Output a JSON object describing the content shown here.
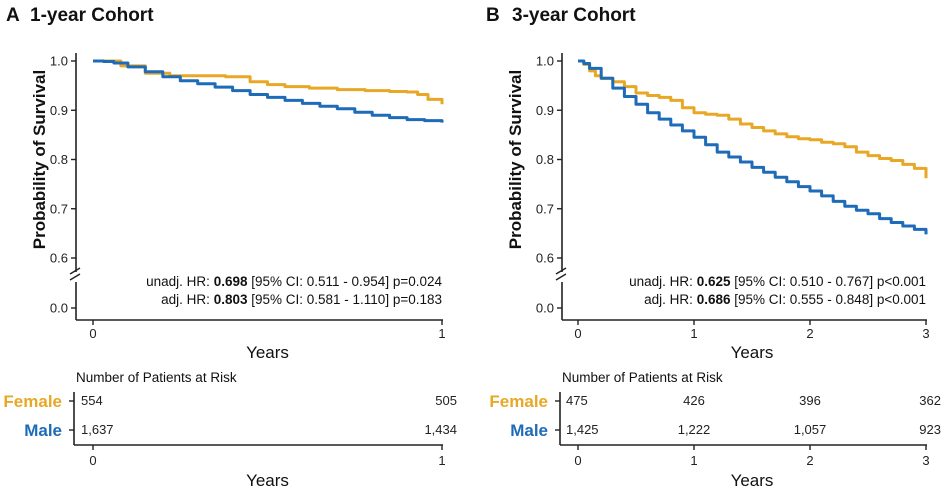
{
  "chart_data": [
    {
      "type": "line",
      "panel_letter": "A",
      "title": "1-year Cohort",
      "xlabel": "Years",
      "ylabel": "Probability of Survival",
      "xlim": [
        0,
        1
      ],
      "ylim": [
        0.55,
        1.0
      ],
      "x_ticks": [
        0,
        1
      ],
      "x_tick_labels": [
        "0",
        "1"
      ],
      "y_ticks": [
        0.6,
        0.7,
        0.8,
        0.9,
        1.0
      ],
      "y_tick_labels": [
        "0.6",
        "0.7",
        "0.8",
        "0.9",
        "1.0"
      ],
      "y_zero_label": "0.0",
      "series": [
        {
          "name": "Female",
          "color": "#E8A826",
          "x": [
            0,
            0.08,
            0.15,
            0.22,
            0.3,
            0.38,
            0.45,
            0.5,
            0.55,
            0.62,
            0.7,
            0.78,
            0.85,
            0.9,
            0.93,
            0.96,
            1.0
          ],
          "y": [
            1.0,
            0.99,
            0.975,
            0.97,
            0.97,
            0.968,
            0.958,
            0.952,
            0.948,
            0.945,
            0.942,
            0.94,
            0.938,
            0.937,
            0.932,
            0.922,
            0.912
          ]
        },
        {
          "name": "Male",
          "color": "#1E6BB8",
          "x": [
            0,
            0.03,
            0.06,
            0.1,
            0.15,
            0.2,
            0.25,
            0.3,
            0.35,
            0.4,
            0.45,
            0.5,
            0.55,
            0.6,
            0.65,
            0.7,
            0.75,
            0.8,
            0.85,
            0.9,
            0.95,
            1.0
          ],
          "y": [
            1.0,
            0.999,
            0.996,
            0.988,
            0.978,
            0.968,
            0.96,
            0.954,
            0.947,
            0.94,
            0.932,
            0.926,
            0.92,
            0.914,
            0.908,
            0.903,
            0.896,
            0.89,
            0.885,
            0.881,
            0.879,
            0.875
          ]
        }
      ],
      "stats": [
        {
          "prefix": "unadj. HR: ",
          "hr": "0.698",
          "rest": " [95% CI: 0.511 - 0.954] p=0.024"
        },
        {
          "prefix": "adj. HR: ",
          "hr": "0.803",
          "rest": " [95% CI: 0.581 - 1.110] p=0.183"
        }
      ],
      "risk_table": {
        "title": "Number of Patients at Risk",
        "time_points": [
          0,
          1
        ],
        "rows": [
          {
            "group": "Female",
            "counts": [
              "554",
              "505"
            ]
          },
          {
            "group": "Male",
            "counts": [
              "1,637",
              "1,434"
            ]
          }
        ],
        "xlabel": "Years",
        "x_tick_labels": [
          "0",
          "1"
        ]
      }
    },
    {
      "type": "line",
      "panel_letter": "B",
      "title": "3-year Cohort",
      "xlabel": "Years",
      "ylabel": "Probability of Survival",
      "xlim": [
        0,
        3
      ],
      "ylim": [
        0.55,
        1.0
      ],
      "x_ticks": [
        0,
        1,
        2,
        3
      ],
      "x_tick_labels": [
        "0",
        "1",
        "2",
        "3"
      ],
      "y_ticks": [
        0.6,
        0.7,
        0.8,
        0.9,
        1.0
      ],
      "y_tick_labels": [
        "0.6",
        "0.7",
        "0.8",
        "0.9",
        "1.0"
      ],
      "y_zero_label": "0.0",
      "series": [
        {
          "name": "Female",
          "color": "#E8A826",
          "x": [
            0,
            0.05,
            0.1,
            0.15,
            0.2,
            0.3,
            0.4,
            0.5,
            0.6,
            0.7,
            0.8,
            0.9,
            1.0,
            1.1,
            1.2,
            1.3,
            1.4,
            1.5,
            1.6,
            1.7,
            1.8,
            1.9,
            2.0,
            2.1,
            2.2,
            2.3,
            2.4,
            2.5,
            2.6,
            2.7,
            2.8,
            2.9,
            3.0
          ],
          "y": [
            1.0,
            0.993,
            0.98,
            0.97,
            0.965,
            0.958,
            0.948,
            0.935,
            0.93,
            0.926,
            0.92,
            0.905,
            0.895,
            0.892,
            0.89,
            0.882,
            0.872,
            0.865,
            0.858,
            0.852,
            0.846,
            0.842,
            0.84,
            0.835,
            0.832,
            0.826,
            0.815,
            0.808,
            0.802,
            0.798,
            0.79,
            0.782,
            0.762
          ]
        },
        {
          "name": "Male",
          "color": "#1E6BB8",
          "x": [
            0,
            0.05,
            0.1,
            0.2,
            0.3,
            0.4,
            0.5,
            0.6,
            0.7,
            0.8,
            0.9,
            1.0,
            1.1,
            1.2,
            1.3,
            1.4,
            1.5,
            1.6,
            1.7,
            1.8,
            1.9,
            2.0,
            2.1,
            2.2,
            2.3,
            2.4,
            2.5,
            2.6,
            2.7,
            2.8,
            2.9,
            3.0
          ],
          "y": [
            1.0,
            0.995,
            0.985,
            0.965,
            0.945,
            0.928,
            0.912,
            0.895,
            0.882,
            0.87,
            0.858,
            0.845,
            0.83,
            0.815,
            0.805,
            0.795,
            0.784,
            0.774,
            0.764,
            0.755,
            0.745,
            0.736,
            0.726,
            0.715,
            0.705,
            0.697,
            0.69,
            0.68,
            0.672,
            0.665,
            0.658,
            0.648
          ]
        }
      ],
      "stats": [
        {
          "prefix": "unadj. HR: ",
          "hr": "0.625",
          "rest": " [95% CI: 0.510 - 0.767] p<0.001"
        },
        {
          "prefix": "adj. HR: ",
          "hr": "0.686",
          "rest": " [95% CI: 0.555 - 0.848] p<0.001"
        }
      ],
      "risk_table": {
        "title": "Number of Patients at Risk",
        "time_points": [
          0,
          1,
          2,
          3
        ],
        "rows": [
          {
            "group": "Female",
            "counts": [
              "475",
              "426",
              "396",
              "362"
            ]
          },
          {
            "group": "Male",
            "counts": [
              "1,425",
              "1,222",
              "1,057",
              "923"
            ]
          }
        ],
        "xlabel": "Years",
        "x_tick_labels": [
          "0",
          "1",
          "2",
          "3"
        ]
      }
    }
  ]
}
